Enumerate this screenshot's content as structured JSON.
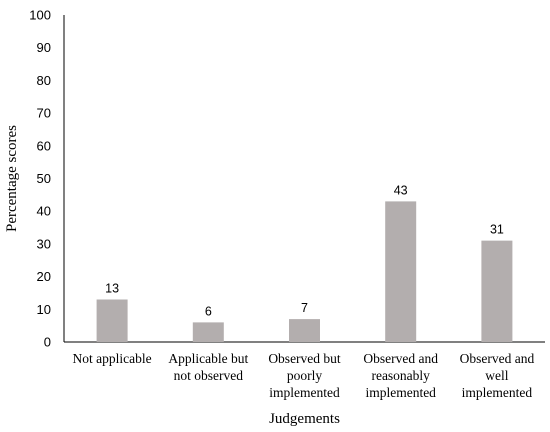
{
  "chart_data": {
    "type": "bar",
    "title": "",
    "xlabel": "Judgements",
    "ylabel": "Percentage scores",
    "ylim": [
      0,
      100
    ],
    "yticks": [
      0,
      10,
      20,
      30,
      40,
      50,
      60,
      70,
      80,
      90,
      100
    ],
    "categories": [
      [
        "Not applicable"
      ],
      [
        "Applicable but",
        "not observed"
      ],
      [
        "Observed but",
        "poorly",
        "implemented"
      ],
      [
        "Observed and",
        "reasonably",
        "implemented"
      ],
      [
        "Observed and",
        "well",
        "implemented"
      ]
    ],
    "values": [
      13,
      6,
      7,
      43,
      31
    ],
    "bar_color": "#b3aeae",
    "grid": false,
    "legend": "none"
  }
}
